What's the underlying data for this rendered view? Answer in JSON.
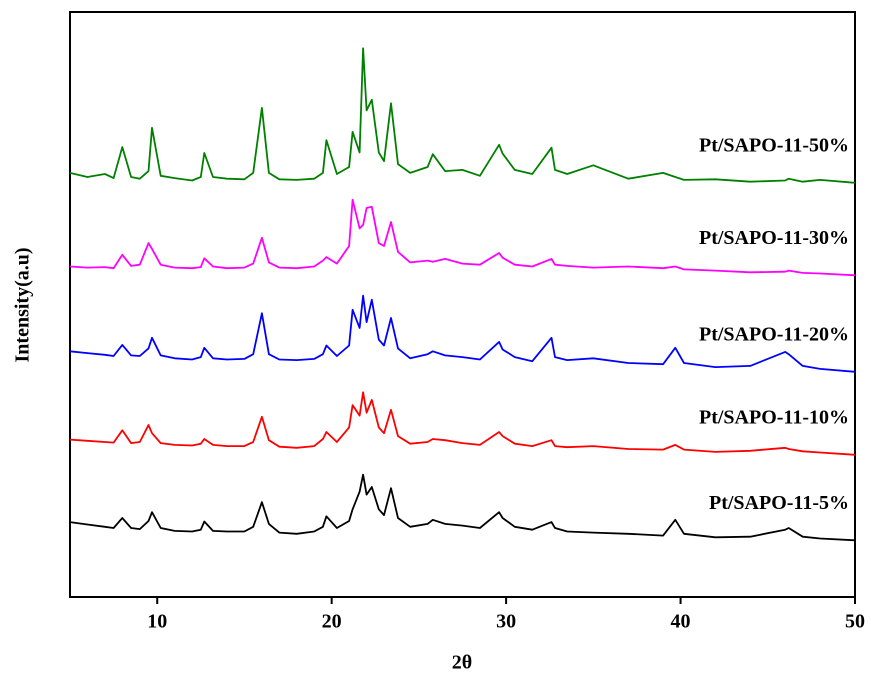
{
  "chart_data": {
    "type": "line",
    "x_label": "2θ",
    "y_label": "Intensity(a.u)",
    "xlim": [
      5,
      50
    ],
    "xticks": [
      10,
      20,
      30,
      40,
      50
    ],
    "ylim": [
      0,
      100
    ],
    "x": [
      5,
      6,
      7,
      7.5,
      8,
      8.5,
      9,
      9.5,
      9.7,
      10.2,
      11,
      12,
      12.5,
      12.7,
      13.2,
      14,
      15,
      15.5,
      16,
      16.4,
      17,
      18,
      19,
      19.5,
      19.7,
      20.3,
      21,
      21.2,
      21.6,
      21.8,
      22,
      22.3,
      22.7,
      23,
      23.4,
      23.8,
      24.5,
      25.5,
      25.8,
      26.5,
      27.5,
      28.5,
      29.6,
      29.8,
      30.5,
      31.5,
      32.6,
      32.8,
      33.5,
      35,
      37,
      39,
      39.7,
      40.2,
      42,
      44,
      46,
      46.2,
      47,
      48,
      50
    ],
    "series": [
      {
        "name": "Pt/SAPO-11-5%",
        "color": "#000000",
        "values": [
          12.8,
          12.4,
          12,
          11.8,
          13.5,
          11.8,
          11.6,
          13,
          14.5,
          11.8,
          11.3,
          11.2,
          11.5,
          12.9,
          11.3,
          11.2,
          11.2,
          12,
          16.2,
          12.5,
          11,
          10.8,
          11.2,
          12,
          13.8,
          11.8,
          13,
          15,
          18,
          20.9,
          17.5,
          18.8,
          15,
          14,
          18.6,
          13.5,
          12,
          12.5,
          13.2,
          12.5,
          12.2,
          11.8,
          14.5,
          13.5,
          12,
          11.5,
          12.8,
          11.8,
          11.2,
          11,
          10.8,
          10.5,
          13.2,
          10.8,
          10.2,
          10.3,
          11.5,
          11.8,
          10.3,
          10,
          9.7
        ]
      },
      {
        "name": "Pt/SAPO-11-10%",
        "color": "#ff0000",
        "values": [
          26.9,
          26.7,
          26.5,
          26.4,
          28.5,
          26.3,
          26.5,
          29.4,
          28,
          26.3,
          26,
          25.9,
          26.2,
          27,
          26,
          25.8,
          25.8,
          26.5,
          30.8,
          26.8,
          25.7,
          25.5,
          25.8,
          27,
          28.2,
          26.5,
          29,
          32.8,
          31,
          35,
          31.5,
          33.7,
          29,
          28,
          32,
          27.5,
          26.2,
          26.5,
          27,
          26.8,
          26.3,
          26,
          28.2,
          27.5,
          26.2,
          25.8,
          26.8,
          25.8,
          25.6,
          25.8,
          25.3,
          25.2,
          26,
          25.2,
          24.8,
          25,
          25.5,
          25.3,
          24.9,
          24.7,
          24.3
        ]
      },
      {
        "name": "Pt/SAPO-11-20%",
        "color": "#0000ff",
        "values": [
          42,
          41.7,
          41.4,
          41.2,
          43.1,
          41.3,
          41.2,
          42.5,
          44.3,
          41.3,
          40.8,
          40.6,
          41,
          42.6,
          40.8,
          40.6,
          40.7,
          41.5,
          48.5,
          41.5,
          40.6,
          40.5,
          40.7,
          41.5,
          43,
          41.2,
          43,
          49.1,
          46,
          51.5,
          47,
          50.8,
          44,
          43,
          47.7,
          42.5,
          40.8,
          41.5,
          42,
          41.3,
          41,
          40.6,
          43.6,
          42.3,
          41,
          40.3,
          44.3,
          41,
          40.5,
          40.8,
          40,
          39.8,
          42.6,
          40,
          39.3,
          39.5,
          41.9,
          41.5,
          39.5,
          39,
          38.5
        ]
      },
      {
        "name": "Pt/SAPO-11-30%",
        "color": "#ff00ff",
        "values": [
          56.5,
          56.3,
          56.4,
          56.2,
          58.5,
          56.6,
          56.8,
          60.5,
          59.5,
          56.8,
          56.3,
          56.2,
          56.4,
          57.9,
          56.5,
          56.2,
          56.3,
          57,
          61.4,
          57.2,
          56.3,
          56.2,
          56.5,
          57.5,
          58.1,
          57,
          60,
          67.9,
          63,
          63.6,
          66.5,
          66.7,
          60.5,
          60,
          64.1,
          59,
          57.2,
          57.5,
          57.3,
          57.8,
          57,
          56.8,
          58.8,
          58,
          56.8,
          56.5,
          57.8,
          56.8,
          56.6,
          56.3,
          56.5,
          56.2,
          56.5,
          56,
          55.8,
          55.5,
          55.6,
          55.8,
          55.4,
          55.3,
          55
        ]
      },
      {
        "name": "Pt/SAPO-11-50%",
        "color": "#008000",
        "values": [
          72.5,
          71.8,
          72.3,
          71.6,
          76.9,
          71.8,
          71.5,
          72.8,
          80.2,
          72,
          71.6,
          71.2,
          71.8,
          75.9,
          71.8,
          71.5,
          71.4,
          72.5,
          83.6,
          72.5,
          71.4,
          71.3,
          71.5,
          72.5,
          78.1,
          72.3,
          73.5,
          79.5,
          76,
          93.8,
          83.2,
          85,
          76,
          74.5,
          84.4,
          74,
          72.5,
          73.5,
          75.7,
          72.8,
          73,
          72,
          77.3,
          75.8,
          73,
          72.3,
          76.8,
          73,
          72.3,
          73.8,
          71.5,
          72.5,
          71.8,
          71.3,
          71.4,
          71,
          71.2,
          71.5,
          71,
          71.3,
          70.8
        ]
      }
    ]
  }
}
